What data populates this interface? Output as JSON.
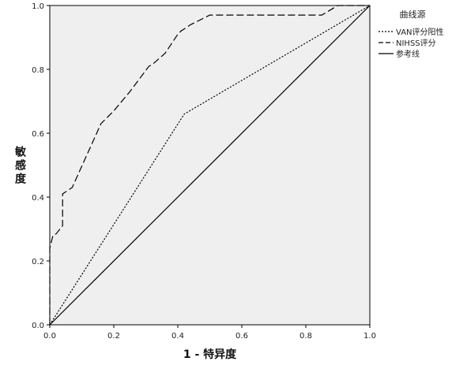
{
  "chart_data": {
    "type": "line",
    "title": "",
    "xlabel": "1 - 特异度",
    "ylabel": "敏感度",
    "xlim": [
      0,
      1
    ],
    "ylim": [
      0,
      1
    ],
    "x_ticks": [
      "0.0",
      "0.2",
      "0.4",
      "0.6",
      "0.8",
      "1.0"
    ],
    "y_ticks": [
      "0.0",
      "0.2",
      "0.4",
      "0.6",
      "0.8",
      "1.0"
    ],
    "grid": false,
    "legend_title": "曲线源",
    "legend_placement": "right",
    "series": [
      {
        "name": "VAN评分阳性",
        "style": "dotted",
        "color": "#000000",
        "x": [
          0.0,
          0.42,
          1.0
        ],
        "y": [
          0.0,
          0.66,
          1.0
        ]
      },
      {
        "name": "NIHSS评分",
        "style": "dashed",
        "color": "#000000",
        "x": [
          0.0,
          0.0,
          0.01,
          0.02,
          0.04,
          0.04,
          0.07,
          0.16,
          0.2,
          0.25,
          0.28,
          0.31,
          0.32,
          0.36,
          0.4,
          0.41,
          0.44,
          0.46,
          0.5,
          0.55,
          0.6,
          0.7,
          0.8,
          0.85,
          0.9,
          0.95,
          1.0
        ],
        "y": [
          0.0,
          0.24,
          0.28,
          0.285,
          0.31,
          0.41,
          0.43,
          0.63,
          0.67,
          0.73,
          0.77,
          0.81,
          0.815,
          0.85,
          0.91,
          0.92,
          0.94,
          0.95,
          0.97,
          0.97,
          0.97,
          0.97,
          0.97,
          0.97,
          1.0,
          1.0,
          1.0
        ]
      },
      {
        "name": "参考线",
        "style": "solid",
        "color": "#000000",
        "x": [
          0.0,
          1.0
        ],
        "y": [
          0.0,
          1.0
        ]
      }
    ],
    "colors": {
      "plot_background": "#efefef",
      "line": "#000000"
    }
  }
}
